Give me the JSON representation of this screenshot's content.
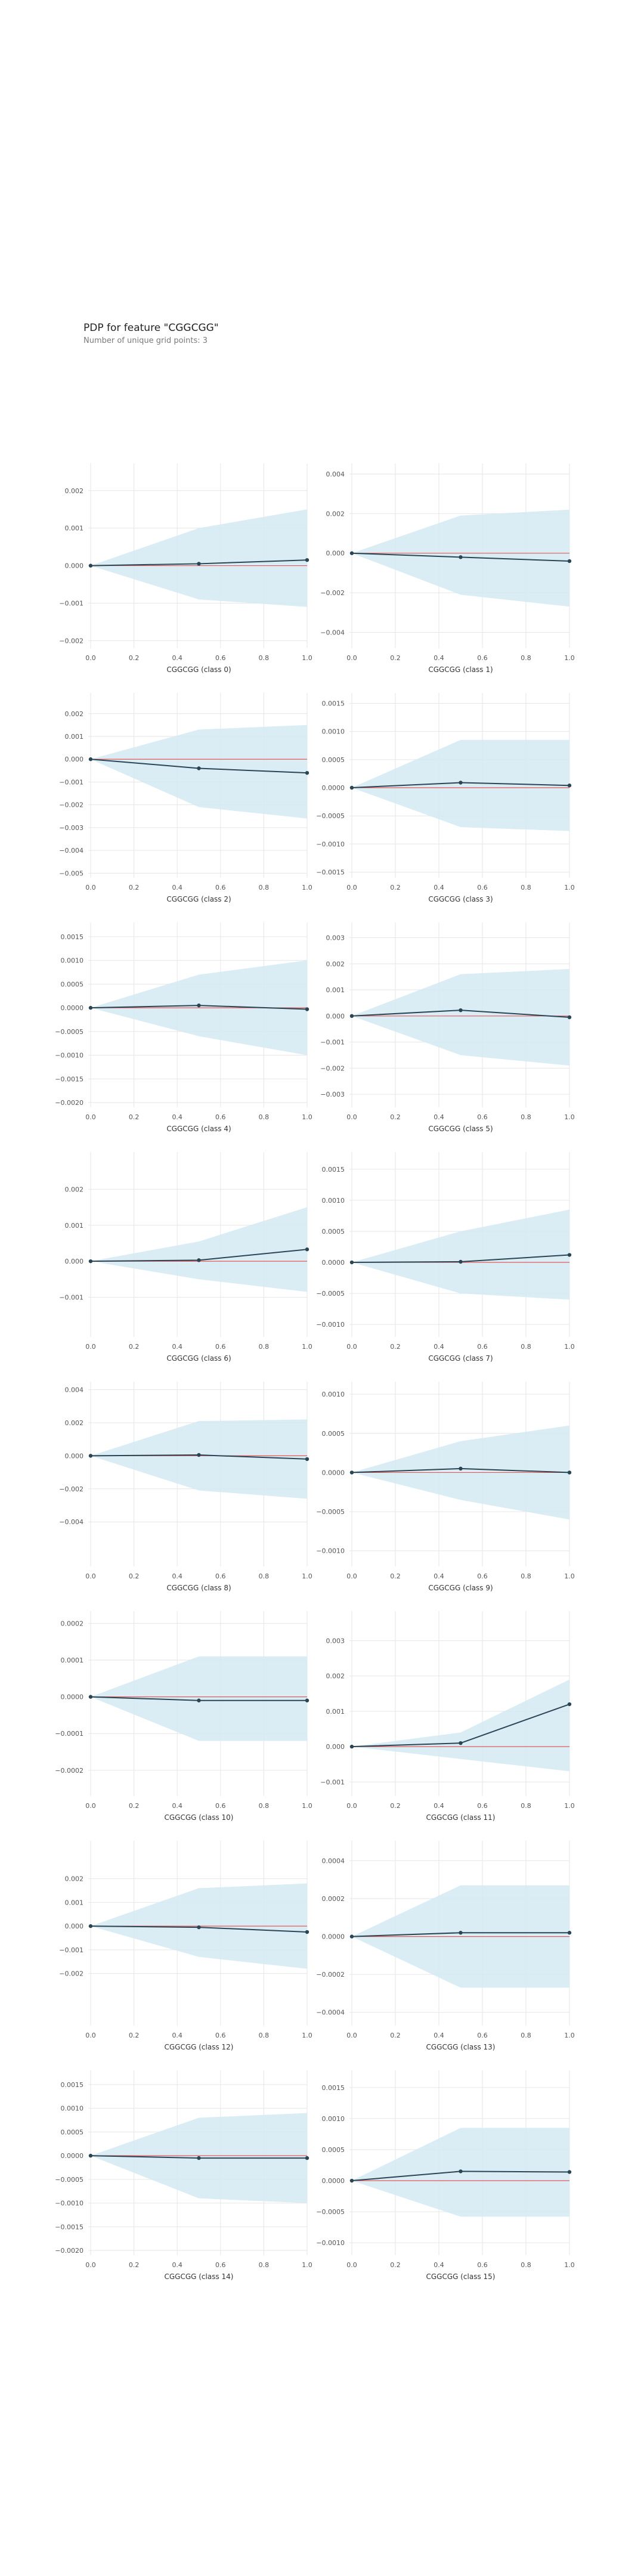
{
  "page": {
    "title": "PDP for feature \"CGGCGG\"",
    "subtitle": "Number of unique grid points: 3"
  },
  "colors": {
    "band": "#d4e9f2",
    "line": "#2a4655",
    "baseline": "#e15a5a",
    "grid": "#e6e6e6",
    "tick": "#555555"
  },
  "chart_data": [
    {
      "type": "line",
      "xlabel": "CGGCGG (class 0)",
      "x": [
        0,
        0.5,
        1
      ],
      "y": [
        0,
        5e-05,
        0.00015
      ],
      "band_upper": [
        0,
        0.001,
        0.0015
      ],
      "band_lower": [
        0,
        -0.0009,
        -0.0011
      ],
      "ylim": [
        -0.0022,
        0.0026
      ],
      "xticks": [
        0,
        0.2,
        0.4,
        0.6,
        0.8,
        1
      ],
      "xtick_labels": [
        "0.0",
        "0.2",
        "0.4",
        "0.6",
        "0.8",
        "1.0"
      ],
      "yticks": [
        -0.002,
        -0.001,
        0,
        0.001,
        0.002
      ],
      "ytick_labels": [
        "−0.002",
        "−0.001",
        "0.000",
        "0.001",
        "0.002"
      ],
      "grid": true
    },
    {
      "type": "line",
      "xlabel": "CGGCGG (class 1)",
      "x": [
        0,
        0.5,
        1
      ],
      "y": [
        0,
        -0.0002,
        -0.0004
      ],
      "band_upper": [
        0,
        0.0019,
        0.0022
      ],
      "band_lower": [
        0,
        -0.0021,
        -0.0027
      ],
      "ylim": [
        -0.0048,
        0.0043
      ],
      "xticks": [
        0,
        0.2,
        0.4,
        0.6,
        0.8,
        1
      ],
      "xtick_labels": [
        "0.0",
        "0.2",
        "0.4",
        "0.6",
        "0.8",
        "1.0"
      ],
      "yticks": [
        -0.004,
        -0.002,
        0,
        0.002,
        0.004
      ],
      "ytick_labels": [
        "−0.004",
        "−0.002",
        "0.000",
        "0.002",
        "0.004"
      ],
      "grid": true
    },
    {
      "type": "line",
      "xlabel": "CGGCGG (class 2)",
      "x": [
        0,
        0.5,
        1
      ],
      "y": [
        0,
        -0.0004,
        -0.0006
      ],
      "band_upper": [
        0,
        0.0013,
        0.0015
      ],
      "band_lower": [
        0,
        -0.0021,
        -0.0026
      ],
      "ylim": [
        -0.0052,
        0.0027
      ],
      "xticks": [
        0,
        0.2,
        0.4,
        0.6,
        0.8,
        1
      ],
      "xtick_labels": [
        "0.0",
        "0.2",
        "0.4",
        "0.6",
        "0.8",
        "1.0"
      ],
      "yticks": [
        -0.005,
        -0.004,
        -0.003,
        -0.002,
        -0.001,
        0,
        0.001,
        0.002
      ],
      "ytick_labels": [
        "−0.005",
        "−0.004",
        "−0.003",
        "−0.002",
        "−0.001",
        "0.000",
        "0.001",
        "0.002"
      ],
      "grid": true
    },
    {
      "type": "line",
      "xlabel": "CGGCGG (class 3)",
      "x": [
        0,
        0.5,
        1
      ],
      "y": [
        0,
        9e-05,
        4e-05
      ],
      "band_upper": [
        0,
        0.00085,
        0.00085
      ],
      "band_lower": [
        0,
        -0.0007,
        -0.00077
      ],
      "ylim": [
        -0.0016,
        0.0016
      ],
      "xticks": [
        0,
        0.2,
        0.4,
        0.6,
        0.8,
        1
      ],
      "xtick_labels": [
        "0.0",
        "0.2",
        "0.4",
        "0.6",
        "0.8",
        "1.0"
      ],
      "yticks": [
        -0.0015,
        -0.001,
        -0.0005,
        0,
        0.0005,
        0.001,
        0.0015
      ],
      "ytick_labels": [
        "−0.0015",
        "−0.0010",
        "−0.0005",
        "0.0000",
        "0.0005",
        "0.0010",
        "0.0015"
      ],
      "grid": true
    },
    {
      "type": "line",
      "xlabel": "CGGCGG (class 4)",
      "x": [
        0,
        0.5,
        1
      ],
      "y": [
        0,
        5e-05,
        -3e-05
      ],
      "band_upper": [
        0,
        0.0007,
        0.001
      ],
      "band_lower": [
        0,
        -0.0006,
        -0.001
      ],
      "ylim": [
        -0.0021,
        0.0017
      ],
      "xticks": [
        0,
        0.2,
        0.4,
        0.6,
        0.8,
        1
      ],
      "xtick_labels": [
        "0.0",
        "0.2",
        "0.4",
        "0.6",
        "0.8",
        "1.0"
      ],
      "yticks": [
        -0.002,
        -0.0015,
        -0.001,
        -0.0005,
        0,
        0.0005,
        0.001,
        0.0015
      ],
      "ytick_labels": [
        "−0.0020",
        "−0.0015",
        "−0.0010",
        "−0.0005",
        "0.0000",
        "0.0005",
        "0.0010",
        "0.0015"
      ],
      "grid": true
    },
    {
      "type": "line",
      "xlabel": "CGGCGG (class 5)",
      "x": [
        0,
        0.5,
        1
      ],
      "y": [
        0,
        0.00022,
        -5e-05
      ],
      "band_upper": [
        0,
        0.0016,
        0.0018
      ],
      "band_lower": [
        0,
        -0.0015,
        -0.0019
      ],
      "ylim": [
        -0.0035,
        0.0034
      ],
      "xticks": [
        0,
        0.2,
        0.4,
        0.6,
        0.8,
        1
      ],
      "xtick_labels": [
        "0.0",
        "0.2",
        "0.4",
        "0.6",
        "0.8",
        "1.0"
      ],
      "yticks": [
        -0.003,
        -0.002,
        -0.001,
        0,
        0.001,
        0.002,
        0.003
      ],
      "ytick_labels": [
        "−0.003",
        "−0.002",
        "−0.001",
        "0.000",
        "0.001",
        "0.002",
        "0.003"
      ],
      "grid": true
    },
    {
      "type": "line",
      "xlabel": "CGGCGG (class 6)",
      "x": [
        0,
        0.5,
        1
      ],
      "y": [
        0,
        3e-05,
        0.00033
      ],
      "band_upper": [
        0,
        0.00055,
        0.0015
      ],
      "band_lower": [
        0,
        -0.0005,
        -0.00085
      ],
      "ylim": [
        -0.0021,
        0.0029
      ],
      "xticks": [
        0,
        0.2,
        0.4,
        0.6,
        0.8,
        1
      ],
      "xtick_labels": [
        "0.0",
        "0.2",
        "0.4",
        "0.6",
        "0.8",
        "1.0"
      ],
      "yticks": [
        -0.001,
        0,
        0.001,
        0.002
      ],
      "ytick_labels": [
        "−0.001",
        "0.000",
        "0.001",
        "0.002"
      ],
      "grid": true
    },
    {
      "type": "line",
      "xlabel": "CGGCGG (class 7)",
      "x": [
        0,
        0.5,
        1
      ],
      "y": [
        0,
        1e-05,
        0.00012
      ],
      "band_upper": [
        0,
        0.0005,
        0.00085
      ],
      "band_lower": [
        0,
        -0.0005,
        -0.0006
      ],
      "ylim": [
        -0.0012,
        0.0017
      ],
      "xticks": [
        0,
        0.2,
        0.4,
        0.6,
        0.8,
        1
      ],
      "xtick_labels": [
        "0.0",
        "0.2",
        "0.4",
        "0.6",
        "0.8",
        "1.0"
      ],
      "yticks": [
        -0.001,
        -0.0005,
        0,
        0.0005,
        0.001,
        0.0015
      ],
      "ytick_labels": [
        "−0.0010",
        "−0.0005",
        "0.0000",
        "0.0005",
        "0.0010",
        "0.0015"
      ],
      "grid": true
    },
    {
      "type": "line",
      "xlabel": "CGGCGG (class 8)",
      "x": [
        0,
        0.5,
        1
      ],
      "y": [
        0,
        5e-05,
        -0.0002
      ],
      "band_upper": [
        0,
        0.0021,
        0.0022
      ],
      "band_lower": [
        0,
        -0.0021,
        -0.0026
      ],
      "ylim": [
        -0.0067,
        0.0042
      ],
      "xticks": [
        0,
        0.2,
        0.4,
        0.6,
        0.8,
        1
      ],
      "xtick_labels": [
        "0.0",
        "0.2",
        "0.4",
        "0.6",
        "0.8",
        "1.0"
      ],
      "yticks": [
        -0.004,
        -0.002,
        0,
        0.002,
        0.004
      ],
      "ytick_labels": [
        "−0.004",
        "−0.002",
        "0.000",
        "0.002",
        "0.004"
      ],
      "grid": true
    },
    {
      "type": "line",
      "xlabel": "CGGCGG (class 9)",
      "x": [
        0,
        0.5,
        1
      ],
      "y": [
        0,
        5e-05,
        0
      ],
      "band_upper": [
        0,
        0.0004,
        0.0006
      ],
      "band_lower": [
        0,
        -0.00035,
        -0.0006
      ],
      "ylim": [
        -0.0012,
        0.0011
      ],
      "xticks": [
        0,
        0.2,
        0.4,
        0.6,
        0.8,
        1
      ],
      "xtick_labels": [
        "0.0",
        "0.2",
        "0.4",
        "0.6",
        "0.8",
        "1.0"
      ],
      "yticks": [
        -0.001,
        -0.0005,
        0,
        0.0005,
        0.001
      ],
      "ytick_labels": [
        "−0.0010",
        "−0.0005",
        "0.0000",
        "0.0005",
        "0.0010"
      ],
      "grid": true
    },
    {
      "type": "line",
      "xlabel": "CGGCGG (class 10)",
      "x": [
        0,
        0.5,
        1
      ],
      "y": [
        0,
        -1e-05,
        -1e-05
      ],
      "band_upper": [
        0,
        0.00011,
        0.00011
      ],
      "band_lower": [
        0,
        -0.00012,
        -0.00012
      ],
      "ylim": [
        -0.00027,
        0.00022
      ],
      "xticks": [
        0,
        0.2,
        0.4,
        0.6,
        0.8,
        1
      ],
      "xtick_labels": [
        "0.0",
        "0.2",
        "0.4",
        "0.6",
        "0.8",
        "1.0"
      ],
      "yticks": [
        -0.0002,
        -0.0001,
        0,
        0.0001,
        0.0002
      ],
      "ytick_labels": [
        "−0.0002",
        "−0.0001",
        "0.0000",
        "0.0001",
        "0.0002"
      ],
      "grid": true
    },
    {
      "type": "line",
      "xlabel": "CGGCGG (class 11)",
      "x": [
        0,
        0.5,
        1
      ],
      "y": [
        0,
        0.0001,
        0.0012
      ],
      "band_upper": [
        0,
        0.0004,
        0.0019
      ],
      "band_lower": [
        0,
        -0.00035,
        -0.0007
      ],
      "ylim": [
        -0.0014,
        0.0037
      ],
      "xticks": [
        0,
        0.2,
        0.4,
        0.6,
        0.8,
        1
      ],
      "xtick_labels": [
        "0.0",
        "0.2",
        "0.4",
        "0.6",
        "0.8",
        "1.0"
      ],
      "yticks": [
        -0.001,
        0,
        0.001,
        0.002,
        0.003
      ],
      "ytick_labels": [
        "−0.001",
        "0.000",
        "0.001",
        "0.002",
        "0.003"
      ],
      "grid": true
    },
    {
      "type": "line",
      "xlabel": "CGGCGG (class 12)",
      "x": [
        0,
        0.5,
        1
      ],
      "y": [
        0,
        -5e-05,
        -0.00025
      ],
      "band_upper": [
        0,
        0.0016,
        0.0018
      ],
      "band_lower": [
        0,
        -0.0013,
        -0.0018
      ],
      "ylim": [
        -0.0042,
        0.0034
      ],
      "xticks": [
        0,
        0.2,
        0.4,
        0.6,
        0.8,
        1
      ],
      "xtick_labels": [
        "0.0",
        "0.2",
        "0.4",
        "0.6",
        "0.8",
        "1.0"
      ],
      "yticks": [
        -0.002,
        -0.001,
        0,
        0.001,
        0.002
      ],
      "ytick_labels": [
        "−0.002",
        "−0.001",
        "0.000",
        "0.001",
        "0.002"
      ],
      "grid": true
    },
    {
      "type": "line",
      "xlabel": "CGGCGG (class 13)",
      "x": [
        0,
        0.5,
        1
      ],
      "y": [
        0,
        2e-05,
        2e-05
      ],
      "band_upper": [
        0,
        0.00027,
        0.00027
      ],
      "band_lower": [
        0,
        -0.00027,
        -0.00027
      ],
      "ylim": [
        -0.00047,
        0.00048
      ],
      "xticks": [
        0,
        0.2,
        0.4,
        0.6,
        0.8,
        1
      ],
      "xtick_labels": [
        "0.0",
        "0.2",
        "0.4",
        "0.6",
        "0.8",
        "1.0"
      ],
      "yticks": [
        -0.0004,
        -0.0002,
        0,
        0.0002,
        0.0004
      ],
      "ytick_labels": [
        "−0.0004",
        "−0.0002",
        "0.0000",
        "0.0002",
        "0.0004"
      ],
      "grid": true
    },
    {
      "type": "line",
      "xlabel": "CGGCGG (class 14)",
      "x": [
        0,
        0.5,
        1
      ],
      "y": [
        0,
        -5e-05,
        -5e-05
      ],
      "band_upper": [
        0,
        0.0008,
        0.0009
      ],
      "band_lower": [
        0,
        -0.0009,
        -0.001
      ],
      "ylim": [
        -0.0021,
        0.0017
      ],
      "xticks": [
        0,
        0.2,
        0.4,
        0.6,
        0.8,
        1
      ],
      "xtick_labels": [
        "0.0",
        "0.2",
        "0.4",
        "0.6",
        "0.8",
        "1.0"
      ],
      "yticks": [
        -0.002,
        -0.0015,
        -0.001,
        -0.0005,
        0,
        0.0005,
        0.001,
        0.0015
      ],
      "ytick_labels": [
        "−0.0020",
        "−0.0015",
        "−0.0010",
        "−0.0005",
        "0.0000",
        "0.0005",
        "0.0010",
        "0.0015"
      ],
      "grid": true
    },
    {
      "type": "line",
      "xlabel": "CGGCGG (class 15)",
      "x": [
        0,
        0.5,
        1
      ],
      "y": [
        0,
        0.00015,
        0.00014
      ],
      "band_upper": [
        0,
        0.00085,
        0.00085
      ],
      "band_lower": [
        0,
        -0.00058,
        -0.00058
      ],
      "ylim": [
        -0.0012,
        0.0017
      ],
      "xticks": [
        0,
        0.2,
        0.4,
        0.6,
        0.8,
        1
      ],
      "xtick_labels": [
        "0.0",
        "0.2",
        "0.4",
        "0.6",
        "0.8",
        "1.0"
      ],
      "yticks": [
        -0.001,
        -0.0005,
        0,
        0.0005,
        0.001,
        0.0015
      ],
      "ytick_labels": [
        "−0.0010",
        "−0.0005",
        "0.0000",
        "0.0005",
        "0.0010",
        "0.0015"
      ],
      "grid": true
    }
  ]
}
